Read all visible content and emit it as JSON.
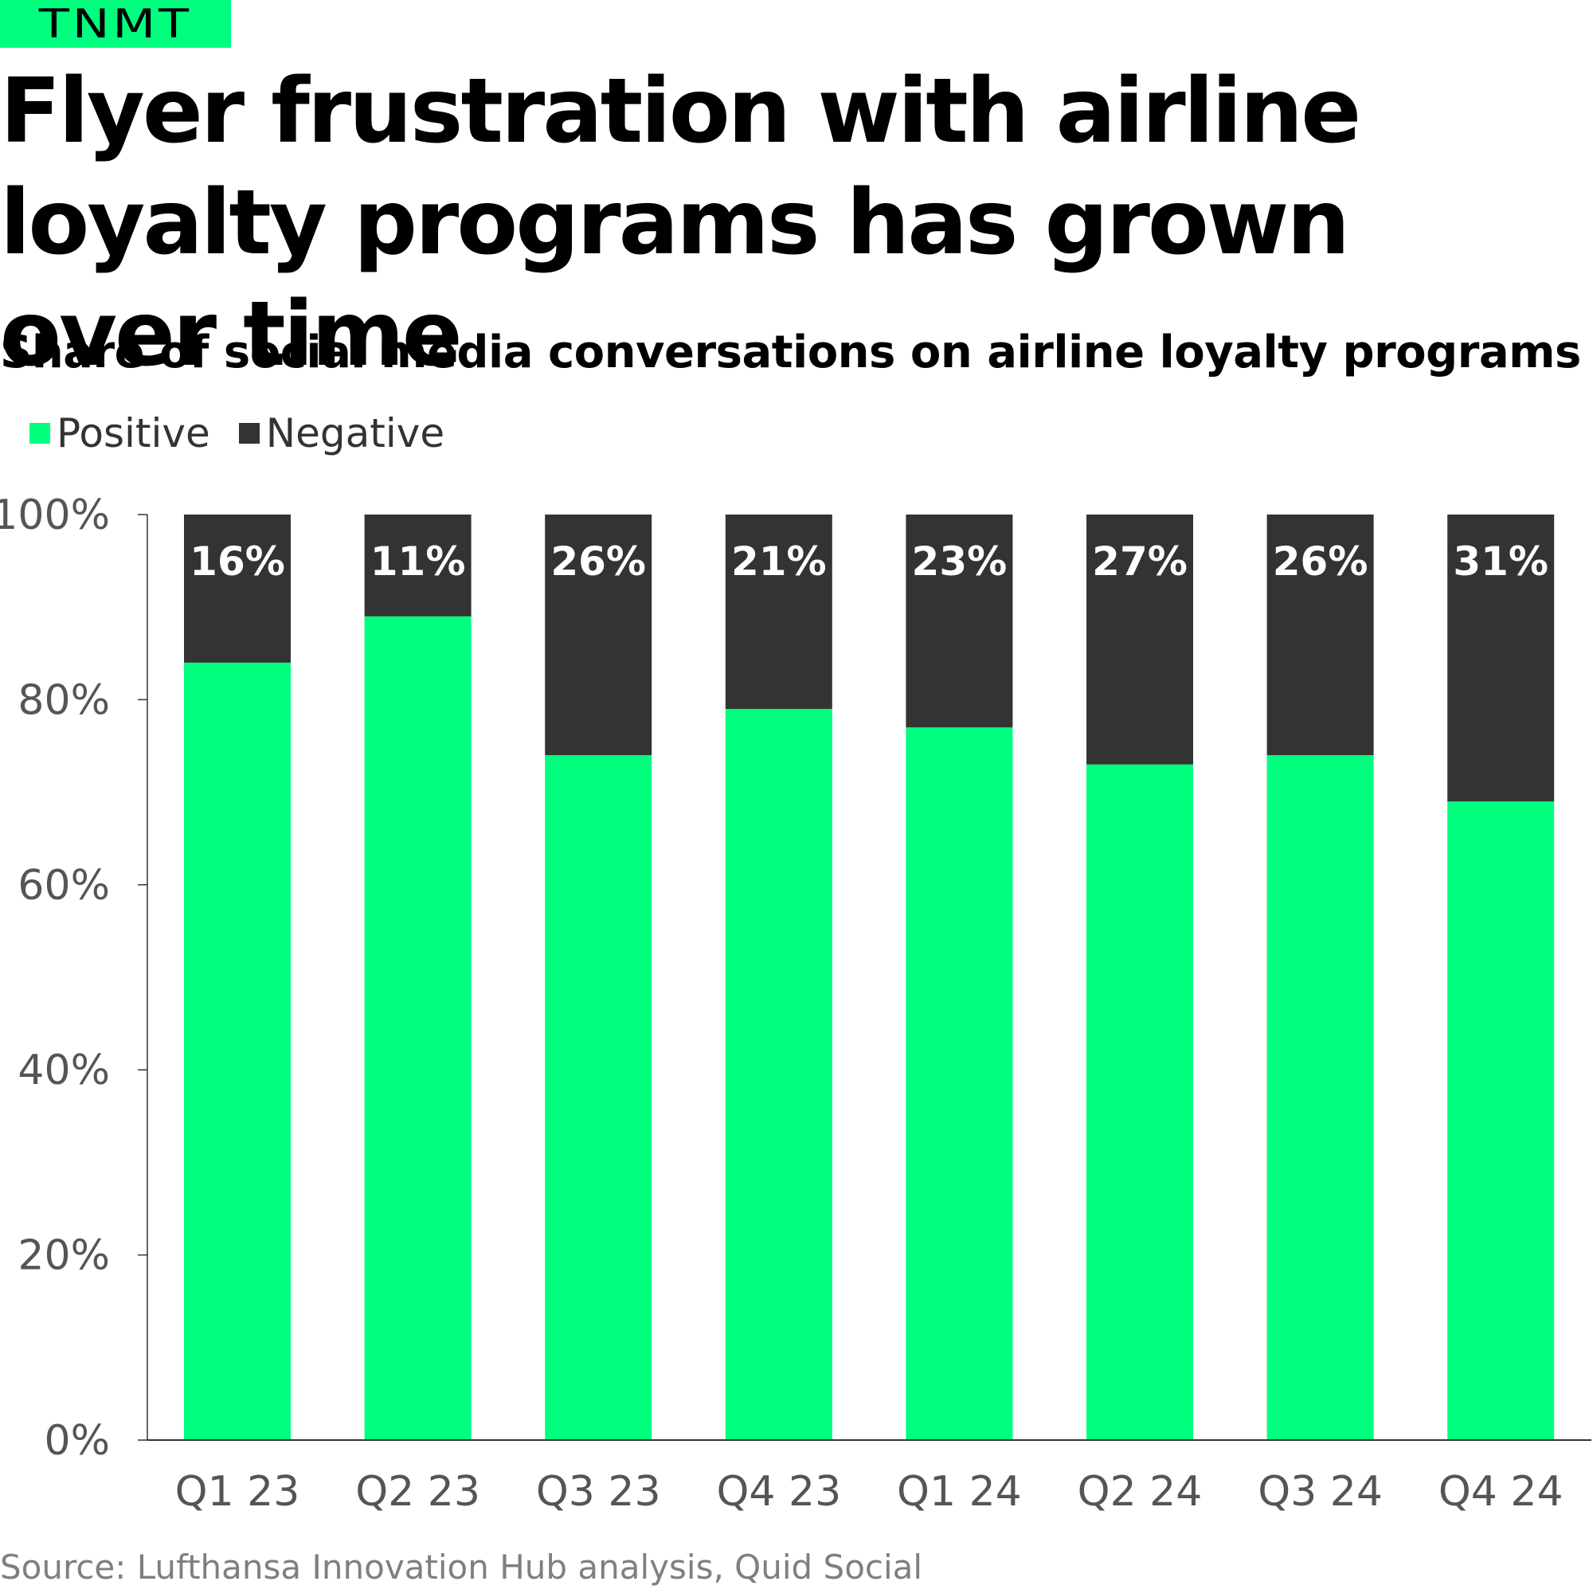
{
  "brand": {
    "logo_text": "TNMT",
    "accent_color": "#00ff7f"
  },
  "header": {
    "title": "Flyer frustration with airline loyalty programs has grown over time",
    "subtitle": "Share of social media conversations on airline loyalty programs"
  },
  "legend": {
    "items": [
      {
        "label": "Positive",
        "color": "#00ff7f"
      },
      {
        "label": "Negative",
        "color": "#333333"
      }
    ]
  },
  "footer": {
    "source": "Source: Lufthansa Innovation Hub analysis, Quid Social"
  },
  "chart_data": {
    "type": "bar",
    "stacked": true,
    "categories": [
      "Q1 23",
      "Q2 23",
      "Q3 23",
      "Q4 23",
      "Q1 24",
      "Q2 24",
      "Q3 24",
      "Q4 24"
    ],
    "series": [
      {
        "name": "Positive",
        "color": "#00ff7f",
        "values": [
          84,
          89,
          74,
          79,
          77,
          73,
          74,
          69
        ]
      },
      {
        "name": "Negative",
        "color": "#333333",
        "values": [
          16,
          11,
          26,
          21,
          23,
          27,
          26,
          31
        ]
      }
    ],
    "data_labels": [
      "16%",
      "11%",
      "26%",
      "21%",
      "23%",
      "27%",
      "26%",
      "31%"
    ],
    "title": "Share of social media conversations on airline loyalty programs",
    "xlabel": "",
    "ylabel": "",
    "ylim": [
      0,
      100
    ],
    "yticks": [
      "0%",
      "20%",
      "40%",
      "60%",
      "80%",
      "100%"
    ],
    "grid": false,
    "legend_position": "top-left"
  }
}
